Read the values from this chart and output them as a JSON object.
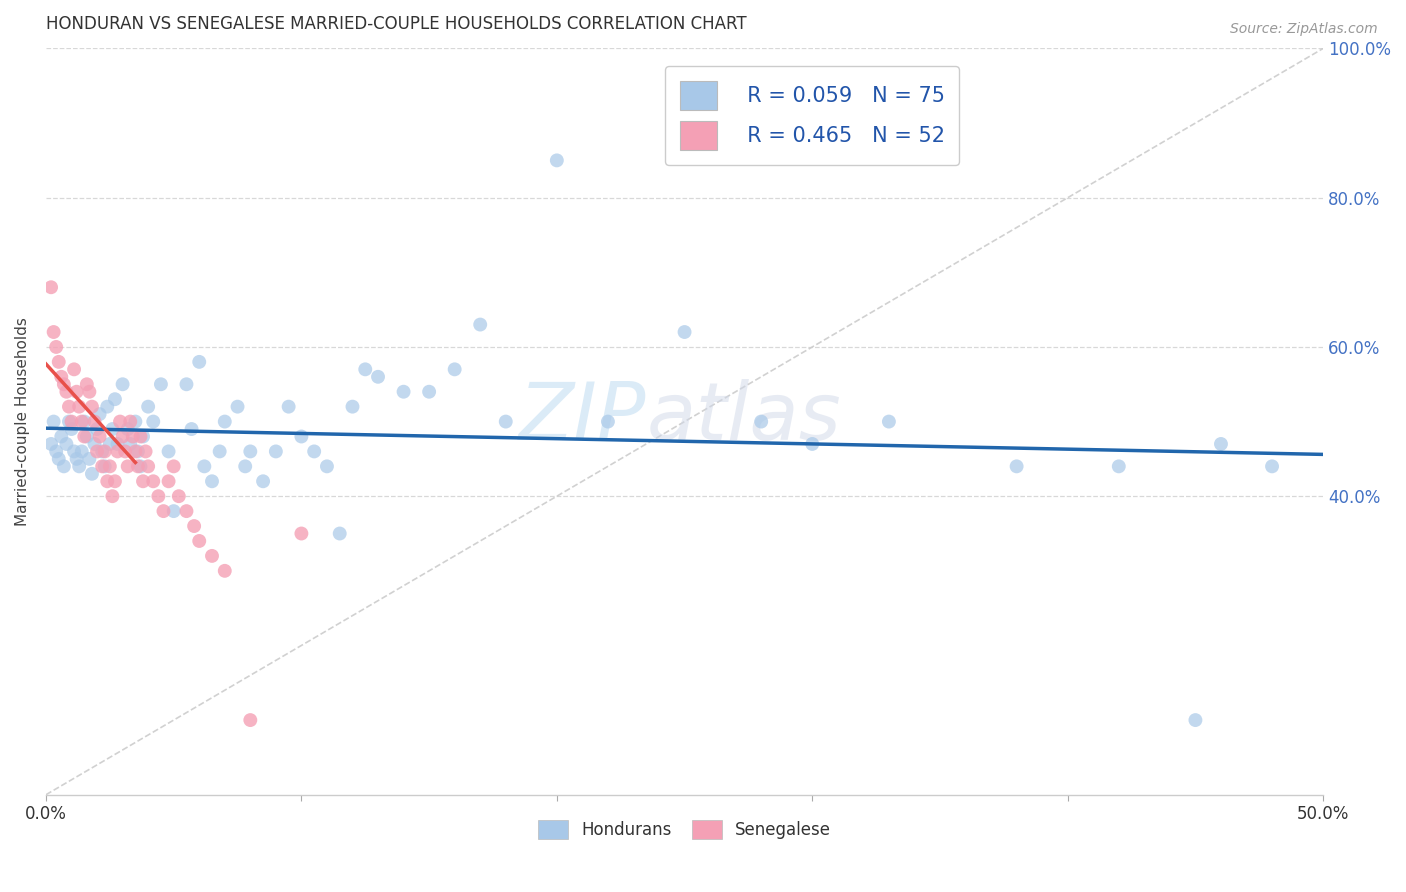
{
  "title": "HONDURAN VS SENEGALESE MARRIED-COUPLE HOUSEHOLDS CORRELATION CHART",
  "source": "Source: ZipAtlas.com",
  "ylabel": "Married-couple Households",
  "xmin": 0.0,
  "xmax": 0.5,
  "ymin": 0.0,
  "ymax": 1.0,
  "xtick_positions": [
    0.0,
    0.5
  ],
  "xtick_labels": [
    "0.0%",
    "50.0%"
  ],
  "ytick_positions": [
    0.4,
    0.6,
    0.8,
    1.0
  ],
  "ytick_labels": [
    "40.0%",
    "60.0%",
    "80.0%",
    "100.0%"
  ],
  "blue_color": "#a8c8e8",
  "pink_color": "#f4a0b5",
  "blue_line_color": "#2166ac",
  "pink_line_color": "#e8504a",
  "diagonal_color": "#cccccc",
  "watermark_zip": "ZIP",
  "watermark_atlas": "atlas",
  "legend_r1": "R = 0.059",
  "legend_n1": "N = 75",
  "legend_r2": "R = 0.465",
  "legend_n2": "N = 52",
  "honduran_x": [
    0.002,
    0.003,
    0.004,
    0.005,
    0.006,
    0.007,
    0.008,
    0.009,
    0.01,
    0.011,
    0.012,
    0.013,
    0.014,
    0.015,
    0.016,
    0.017,
    0.018,
    0.019,
    0.02,
    0.021,
    0.022,
    0.023,
    0.024,
    0.025,
    0.026,
    0.027,
    0.028,
    0.03,
    0.032,
    0.033,
    0.035,
    0.036,
    0.037,
    0.038,
    0.04,
    0.042,
    0.045,
    0.048,
    0.05,
    0.055,
    0.057,
    0.06,
    0.062,
    0.065,
    0.068,
    0.07,
    0.075,
    0.078,
    0.08,
    0.085,
    0.09,
    0.095,
    0.1,
    0.105,
    0.11,
    0.115,
    0.12,
    0.125,
    0.13,
    0.14,
    0.15,
    0.16,
    0.17,
    0.18,
    0.2,
    0.22,
    0.25,
    0.28,
    0.3,
    0.33,
    0.38,
    0.42,
    0.45,
    0.46,
    0.48
  ],
  "honduran_y": [
    0.47,
    0.5,
    0.46,
    0.45,
    0.48,
    0.44,
    0.47,
    0.5,
    0.49,
    0.46,
    0.45,
    0.44,
    0.46,
    0.5,
    0.48,
    0.45,
    0.43,
    0.47,
    0.49,
    0.51,
    0.46,
    0.44,
    0.52,
    0.47,
    0.49,
    0.53,
    0.47,
    0.55,
    0.49,
    0.47,
    0.5,
    0.46,
    0.44,
    0.48,
    0.52,
    0.5,
    0.55,
    0.46,
    0.38,
    0.55,
    0.49,
    0.58,
    0.44,
    0.42,
    0.46,
    0.5,
    0.52,
    0.44,
    0.46,
    0.42,
    0.46,
    0.52,
    0.48,
    0.46,
    0.44,
    0.35,
    0.52,
    0.57,
    0.56,
    0.54,
    0.54,
    0.57,
    0.63,
    0.5,
    0.85,
    0.5,
    0.62,
    0.5,
    0.47,
    0.5,
    0.44,
    0.44,
    0.1,
    0.47,
    0.44
  ],
  "senegalese_x": [
    0.002,
    0.003,
    0.004,
    0.005,
    0.006,
    0.007,
    0.008,
    0.009,
    0.01,
    0.011,
    0.012,
    0.013,
    0.014,
    0.015,
    0.016,
    0.017,
    0.018,
    0.019,
    0.02,
    0.021,
    0.022,
    0.023,
    0.024,
    0.025,
    0.026,
    0.027,
    0.028,
    0.029,
    0.03,
    0.031,
    0.032,
    0.033,
    0.034,
    0.035,
    0.036,
    0.037,
    0.038,
    0.039,
    0.04,
    0.042,
    0.044,
    0.046,
    0.048,
    0.05,
    0.052,
    0.055,
    0.058,
    0.06,
    0.065,
    0.07,
    0.08,
    0.1
  ],
  "senegalese_y": [
    0.68,
    0.62,
    0.6,
    0.58,
    0.56,
    0.55,
    0.54,
    0.52,
    0.5,
    0.57,
    0.54,
    0.52,
    0.5,
    0.48,
    0.55,
    0.54,
    0.52,
    0.5,
    0.46,
    0.48,
    0.44,
    0.46,
    0.42,
    0.44,
    0.4,
    0.42,
    0.46,
    0.5,
    0.48,
    0.46,
    0.44,
    0.5,
    0.48,
    0.46,
    0.44,
    0.48,
    0.42,
    0.46,
    0.44,
    0.42,
    0.4,
    0.38,
    0.42,
    0.44,
    0.4,
    0.38,
    0.36,
    0.34,
    0.32,
    0.3,
    0.1,
    0.35
  ]
}
